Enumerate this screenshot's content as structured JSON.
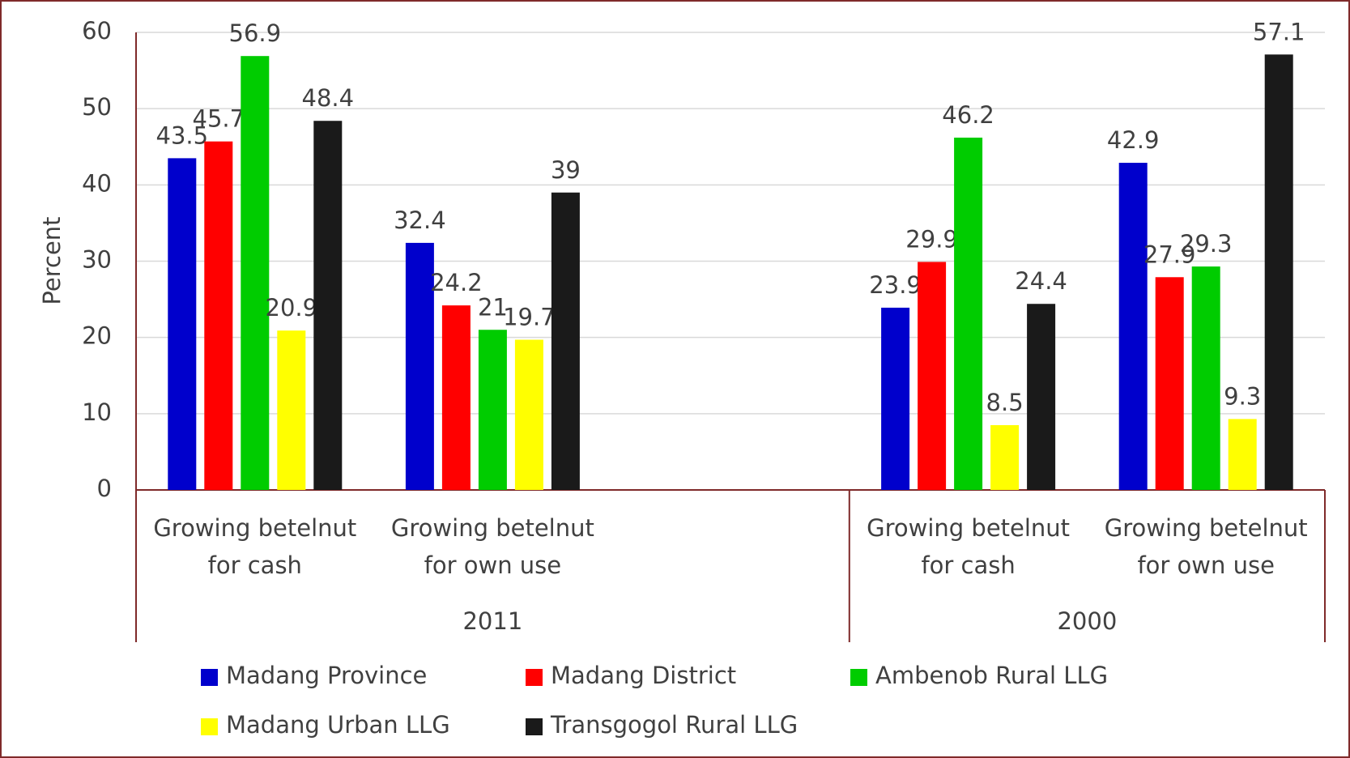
{
  "chart_data": {
    "type": "bar",
    "y_label": "Percent",
    "categories": [
      "Growing betelnut for cash",
      "Growing betelnut for own use",
      null,
      "Growing betelnut for cash",
      "Growing betelnut for own use"
    ],
    "groups": [
      {
        "label": "2011",
        "span": 3
      },
      {
        "label": "2000",
        "span": 2
      }
    ],
    "series": [
      {
        "name": "Madang Province",
        "color": "#0000cc",
        "values": [
          43.5,
          32.4,
          null,
          23.9,
          42.9
        ]
      },
      {
        "name": "Madang District",
        "color": "#ff0000",
        "values": [
          45.7,
          24.2,
          null,
          29.9,
          27.9
        ]
      },
      {
        "name": "Ambenob Rural LLG",
        "color": "#00cc00",
        "values": [
          56.9,
          21,
          null,
          46.2,
          29.3
        ]
      },
      {
        "name": "Madang Urban LLG",
        "color": "#ffff00",
        "values": [
          20.9,
          19.7,
          null,
          8.5,
          9.3
        ]
      },
      {
        "name": "Transgogol Rural LLG",
        "color": "#1a1a1a",
        "values": [
          48.4,
          39,
          null,
          24.4,
          57.1
        ]
      }
    ],
    "ylim": [
      0,
      60
    ],
    "yticks": [
      0,
      10,
      20,
      30,
      40,
      50,
      60
    ],
    "grid": true,
    "legend": "bottom"
  }
}
